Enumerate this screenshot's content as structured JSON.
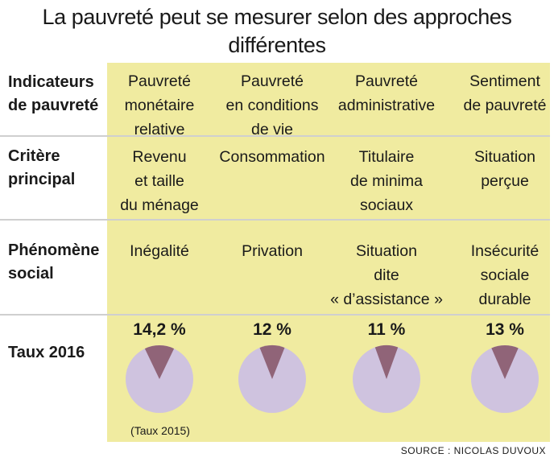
{
  "title_line1": "La pauvreté peut se mesurer selon des approches",
  "title_line2": "différentes",
  "rows": {
    "indicators": "Indicateurs|de pauvreté",
    "criterion": "Critère|principal",
    "phenomenon": "Phénomène|social",
    "rate": "Taux 2016"
  },
  "columns": [
    {
      "indicator": "Pauvreté|monétaire|relative",
      "criterion": "Revenu|et taille|du ménage",
      "phenomenon": "Inégalité",
      "rate_label": "14,2 %"
    },
    {
      "indicator": "Pauvreté|en conditions|de vie",
      "criterion": "Consommation",
      "phenomenon": "Privation",
      "rate_label": "12 %"
    },
    {
      "indicator": "Pauvreté|administrative",
      "criterion": "Titulaire|de minima|sociaux",
      "phenomenon": "Situation|dite|« d’assistance »",
      "rate_label": "11 %"
    },
    {
      "indicator": "Sentiment|de pauvreté",
      "criterion": "Situation|perçue",
      "phenomenon": "Insécurité|sociale|durable",
      "rate_label": "13 %"
    }
  ],
  "note": "(Taux 2015)",
  "source": "SOURCE : NICOLAS DUVOUX",
  "colors": {
    "background": "#f0eba0",
    "pie_rest": "#cfc3df",
    "pie_slice": "#906478"
  },
  "chart_data": {
    "type": "pie",
    "categories": [
      "Pauvreté monétaire relative",
      "Pauvreté en conditions de vie",
      "Pauvreté administrative",
      "Sentiment de pauvreté"
    ],
    "values": [
      14.2,
      12,
      11,
      13
    ],
    "unit": "%",
    "title": "Taux 2016",
    "notes": [
      "(Taux 2015)"
    ]
  }
}
